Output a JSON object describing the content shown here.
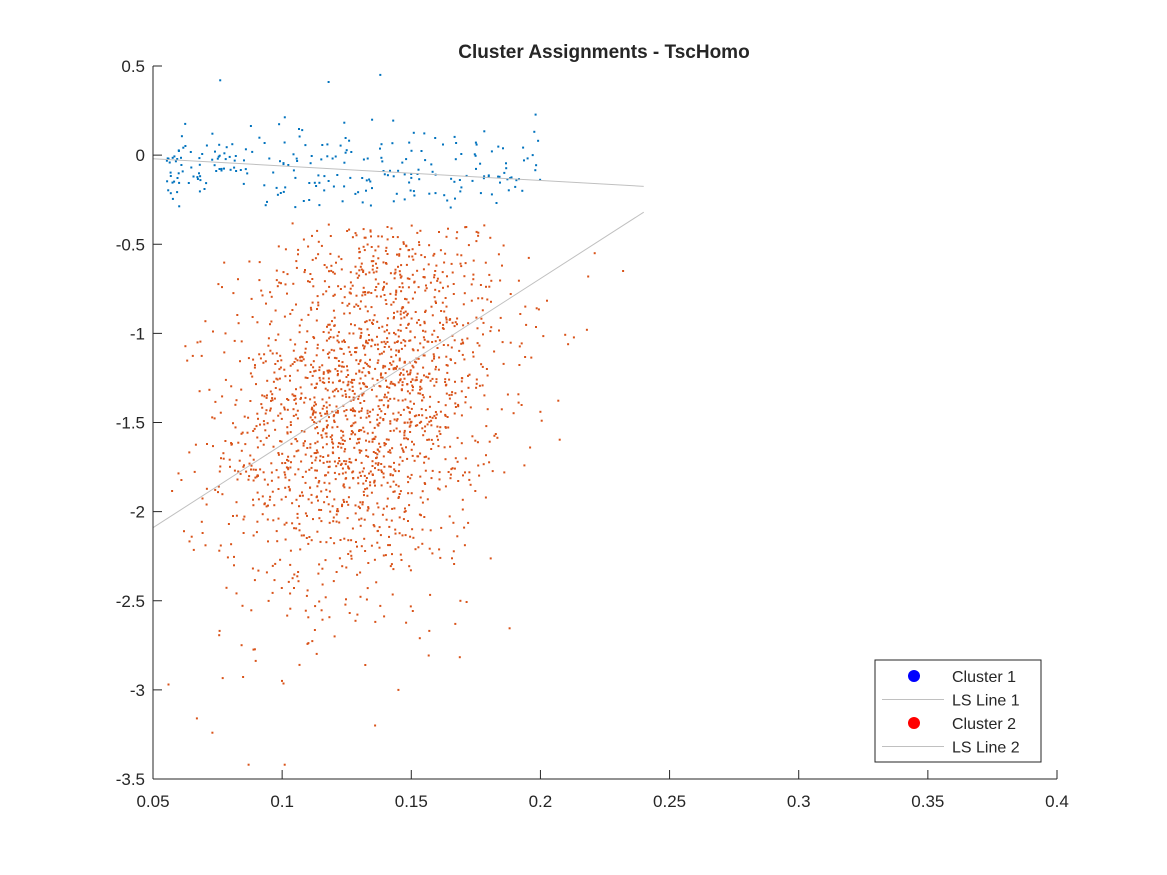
{
  "chart_data": {
    "type": "scatter",
    "title": "Cluster Assignments - TscHomo",
    "xlabel": "",
    "ylabel": "",
    "xlim": [
      0.05,
      0.4
    ],
    "ylim": [
      -3.5,
      0.5
    ],
    "xticks": [
      0.05,
      0.1,
      0.15,
      0.2,
      0.25,
      0.3,
      0.35,
      0.4
    ],
    "xtick_labels": [
      "0.05",
      "0.1",
      "0.15",
      "0.2",
      "0.25",
      "0.3",
      "0.35",
      "0.4"
    ],
    "yticks": [
      0.5,
      0,
      -0.5,
      -1,
      -1.5,
      -2,
      -2.5,
      -3,
      -3.5
    ],
    "ytick_labels": [
      "0.5",
      "0",
      "-0.5",
      "-1",
      "-1.5",
      "-2",
      "-2.5",
      "-3",
      "-3.5"
    ],
    "grid": false,
    "legend_position": "bottom-right",
    "legend": [
      {
        "label": "Cluster 1",
        "kind": "marker",
        "color": "#0000ff"
      },
      {
        "label": "LS Line 1",
        "kind": "line",
        "color": "#c0c0c0"
      },
      {
        "label": "Cluster 2",
        "kind": "marker",
        "color": "#ff0000"
      },
      {
        "label": "LS Line 2",
        "kind": "line",
        "color": "#c0c0c0"
      }
    ],
    "series": [
      {
        "name": "Cluster 1",
        "kind": "scatter",
        "color": "#0072bd",
        "note_approx": "cloud generated from summary below",
        "summary": {
          "n": 240,
          "x_range": [
            0.055,
            0.2
          ],
          "y_center": -0.08,
          "y_spread": 0.12
        },
        "points": [
          [
            0.076,
            0.42
          ],
          [
            0.118,
            0.41
          ],
          [
            0.138,
            0.45
          ],
          [
            0.056,
            -0.02
          ],
          [
            0.073,
            0.12
          ],
          [
            0.074,
            0.02
          ],
          [
            0.175,
            0.07
          ],
          [
            0.197,
            0.0
          ],
          [
            0.186,
            -0.1
          ],
          [
            0.193,
            -0.2
          ]
        ]
      },
      {
        "name": "Cluster 2",
        "kind": "scatter",
        "color": "#d95319",
        "note_approx": "cloud generated from summary below",
        "summary": {
          "n": 1900,
          "x_center": 0.132,
          "x_spread": 0.027,
          "y_center": -1.35,
          "y_spread": 0.55
        },
        "points": [
          [
            0.056,
            -2.97
          ],
          [
            0.062,
            -2.11
          ],
          [
            0.067,
            -3.16
          ],
          [
            0.073,
            -3.24
          ],
          [
            0.087,
            -3.42
          ],
          [
            0.101,
            -3.42
          ],
          [
            0.136,
            -3.2
          ],
          [
            0.232,
            -0.65
          ],
          [
            0.221,
            -0.55
          ],
          [
            0.218,
            -0.98
          ],
          [
            0.2,
            -1.44
          ],
          [
            0.196,
            -1.64
          ],
          [
            0.186,
            -1.78
          ],
          [
            0.169,
            -2.5
          ],
          [
            0.145,
            -3.0
          ]
        ]
      },
      {
        "name": "LS Line 1",
        "kind": "line",
        "color": "#c0c0c0",
        "x": [
          0.05,
          0.24
        ],
        "y": [
          -0.02,
          -0.175
        ]
      },
      {
        "name": "LS Line 2",
        "kind": "line",
        "color": "#c0c0c0",
        "x": [
          0.05,
          0.24
        ],
        "y": [
          -2.09,
          -0.32
        ]
      }
    ]
  }
}
